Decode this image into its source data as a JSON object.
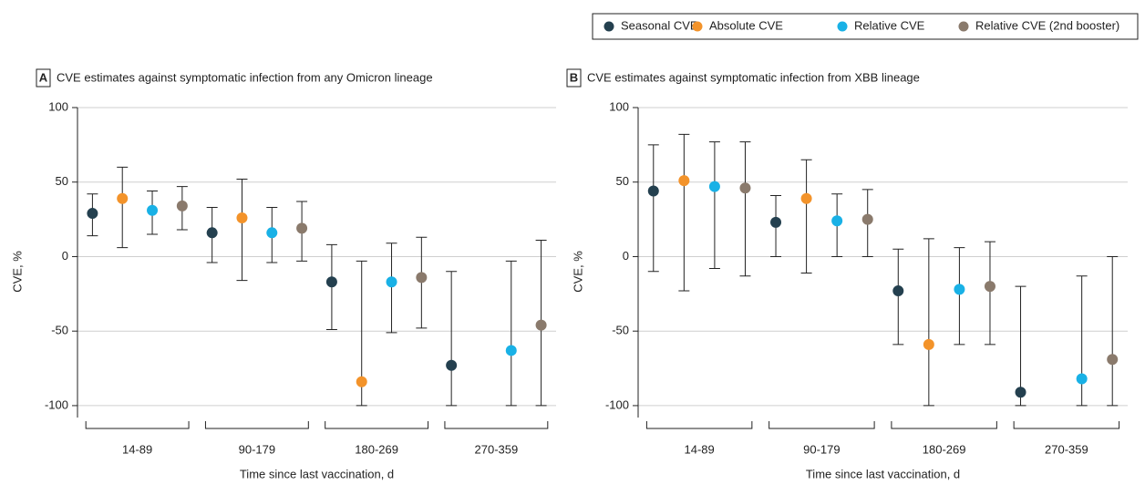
{
  "chart_data": [
    {
      "type": "dot-errorbar",
      "panel": "A",
      "title": "CVE estimates against symptomatic infection from any Omicron lineage",
      "xlabel": "Time since last vaccination, d",
      "ylabel": "CVE, %",
      "categories": [
        "14-89",
        "90-179",
        "180-269",
        "270-359"
      ],
      "ylim": [
        -108,
        100
      ],
      "yticks": [
        -100,
        -50,
        0,
        50,
        100
      ],
      "grid": true,
      "legend": "top-right",
      "series": [
        {
          "name": "Seasonal CVE",
          "color": "#24404f",
          "values": [
            29,
            16,
            -17,
            -73
          ],
          "lower": [
            14,
            -4,
            -49,
            -100
          ],
          "upper": [
            42,
            33,
            8,
            -10
          ]
        },
        {
          "name": "Absolute CVE",
          "color": "#f3932a",
          "values": [
            39,
            26,
            -84,
            null
          ],
          "lower": [
            6,
            -16,
            -100,
            null
          ],
          "upper": [
            60,
            52,
            -3,
            null
          ]
        },
        {
          "name": "Relative CVE",
          "color": "#19b1e6",
          "values": [
            31,
            16,
            -17,
            -63
          ],
          "lower": [
            15,
            -4,
            -51,
            -100
          ],
          "upper": [
            44,
            33,
            9,
            -3
          ]
        },
        {
          "name": "Relative CVE (2nd booster)",
          "color": "#8a7a6c",
          "values": [
            34,
            19,
            -14,
            -46
          ],
          "lower": [
            18,
            -3,
            -48,
            -100
          ],
          "upper": [
            47,
            37,
            13,
            11
          ]
        }
      ]
    },
    {
      "type": "dot-errorbar",
      "panel": "B",
      "title": "CVE estimates against symptomatic infection from XBB lineage",
      "xlabel": "Time since last vaccination, d",
      "ylabel": "CVE, %",
      "categories": [
        "14-89",
        "90-179",
        "180-269",
        "270-359"
      ],
      "ylim": [
        -108,
        100
      ],
      "yticks": [
        -100,
        -50,
        0,
        50,
        100
      ],
      "grid": true,
      "series": [
        {
          "color": "#24404f",
          "values": [
            44,
            23,
            -23,
            -91
          ],
          "lower": [
            -10,
            0,
            -59,
            -100
          ],
          "upper": [
            75,
            41,
            5,
            -20
          ]
        },
        {
          "color": "#f3932a",
          "values": [
            51,
            39,
            -59,
            null
          ],
          "lower": [
            -23,
            -11,
            -100,
            null
          ],
          "upper": [
            82,
            65,
            12,
            null
          ]
        },
        {
          "color": "#19b1e6",
          "values": [
            47,
            24,
            -22,
            -82
          ],
          "lower": [
            -8,
            0,
            -59,
            -100
          ],
          "upper": [
            77,
            42,
            6,
            -13
          ]
        },
        {
          "color": "#8a7a6c",
          "values": [
            46,
            25,
            -20,
            -69
          ],
          "lower": [
            -13,
            0,
            -59,
            -100
          ],
          "upper": [
            77,
            45,
            10,
            0
          ]
        }
      ]
    }
  ]
}
